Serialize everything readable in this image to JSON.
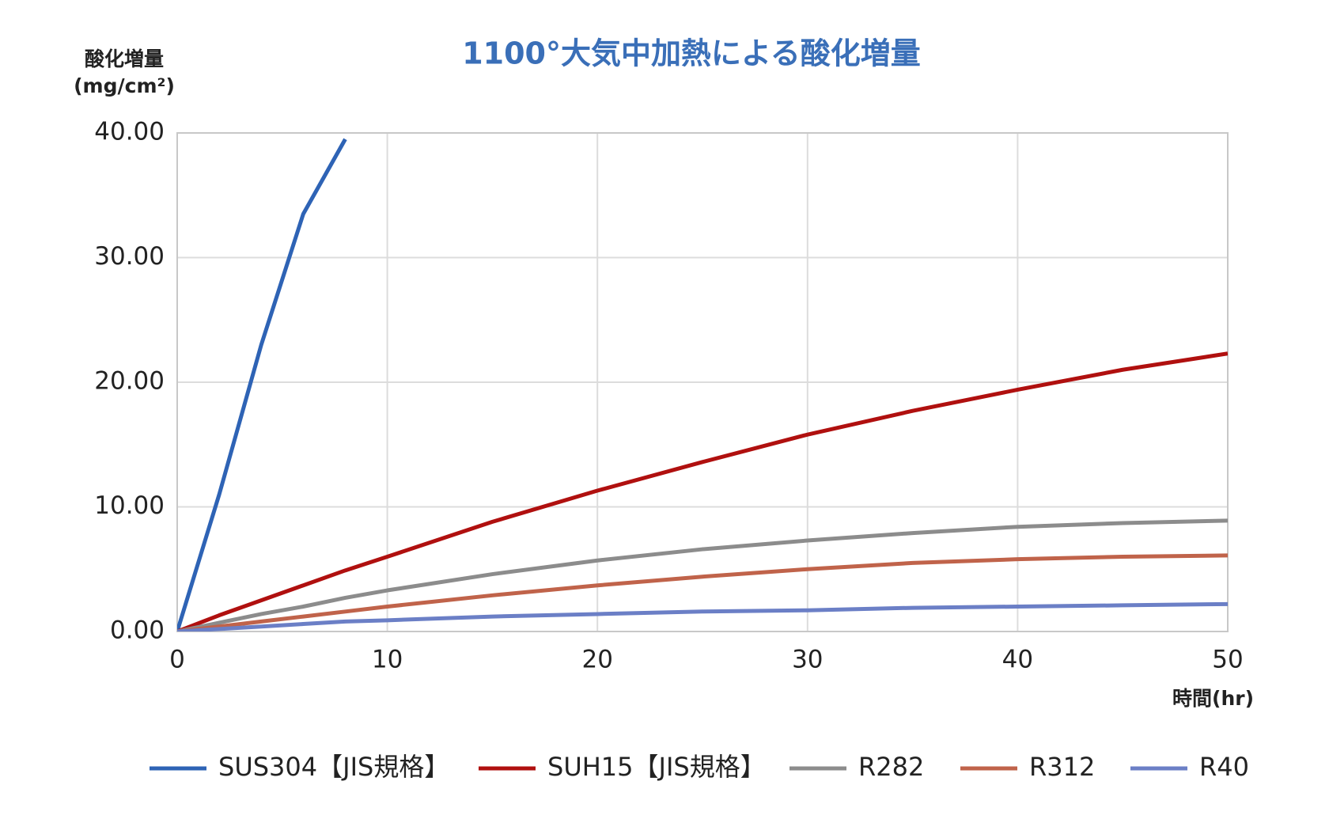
{
  "chart_data": {
    "type": "line",
    "title": "1100°大気中加熱による酸化増量",
    "y_label": [
      "酸化増量",
      "(mg/cm²)"
    ],
    "x_label": "時間(hr)",
    "x": [
      0,
      2,
      4,
      6,
      8,
      10,
      15,
      20,
      25,
      30,
      35,
      40,
      45,
      50
    ],
    "series": [
      {
        "name": "SUS304【JIS規格】",
        "color": "#2e63b5",
        "values": [
          0,
          11,
          23,
          33.5,
          39.5,
          null,
          null,
          null,
          null,
          null,
          null,
          null,
          null,
          null
        ]
      },
      {
        "name": "SUH15【JIS規格】",
        "color": "#b0100f",
        "values": [
          0,
          1.3,
          2.5,
          3.7,
          4.9,
          6.0,
          8.8,
          11.3,
          13.6,
          15.8,
          17.7,
          19.4,
          21.0,
          22.3
        ]
      },
      {
        "name": "R282",
        "color": "#8c8c8c",
        "values": [
          0,
          0.7,
          1.4,
          2.0,
          2.7,
          3.3,
          4.6,
          5.7,
          6.6,
          7.3,
          7.9,
          8.4,
          8.7,
          8.9
        ]
      },
      {
        "name": "R312",
        "color": "#c0634a",
        "values": [
          0,
          0.4,
          0.8,
          1.2,
          1.6,
          2.0,
          2.9,
          3.7,
          4.4,
          5.0,
          5.5,
          5.8,
          6.0,
          6.1
        ]
      },
      {
        "name": "R40",
        "color": "#6b7fc6",
        "values": [
          0,
          0.2,
          0.4,
          0.6,
          0.8,
          0.9,
          1.2,
          1.4,
          1.6,
          1.7,
          1.9,
          2.0,
          2.1,
          2.2
        ]
      }
    ],
    "xlim": [
      0,
      50
    ],
    "xticks": [
      0,
      10,
      20,
      30,
      40,
      50
    ],
    "ylim": [
      0,
      40
    ],
    "yticks": [
      {
        "value": 0,
        "label": "0.00"
      },
      {
        "value": 10,
        "label": "10.00"
      },
      {
        "value": 20,
        "label": "20.00"
      },
      {
        "value": 30,
        "label": "30.00"
      },
      {
        "value": 40,
        "label": "40.00"
      }
    ],
    "grid": true,
    "legend": "bottom"
  }
}
